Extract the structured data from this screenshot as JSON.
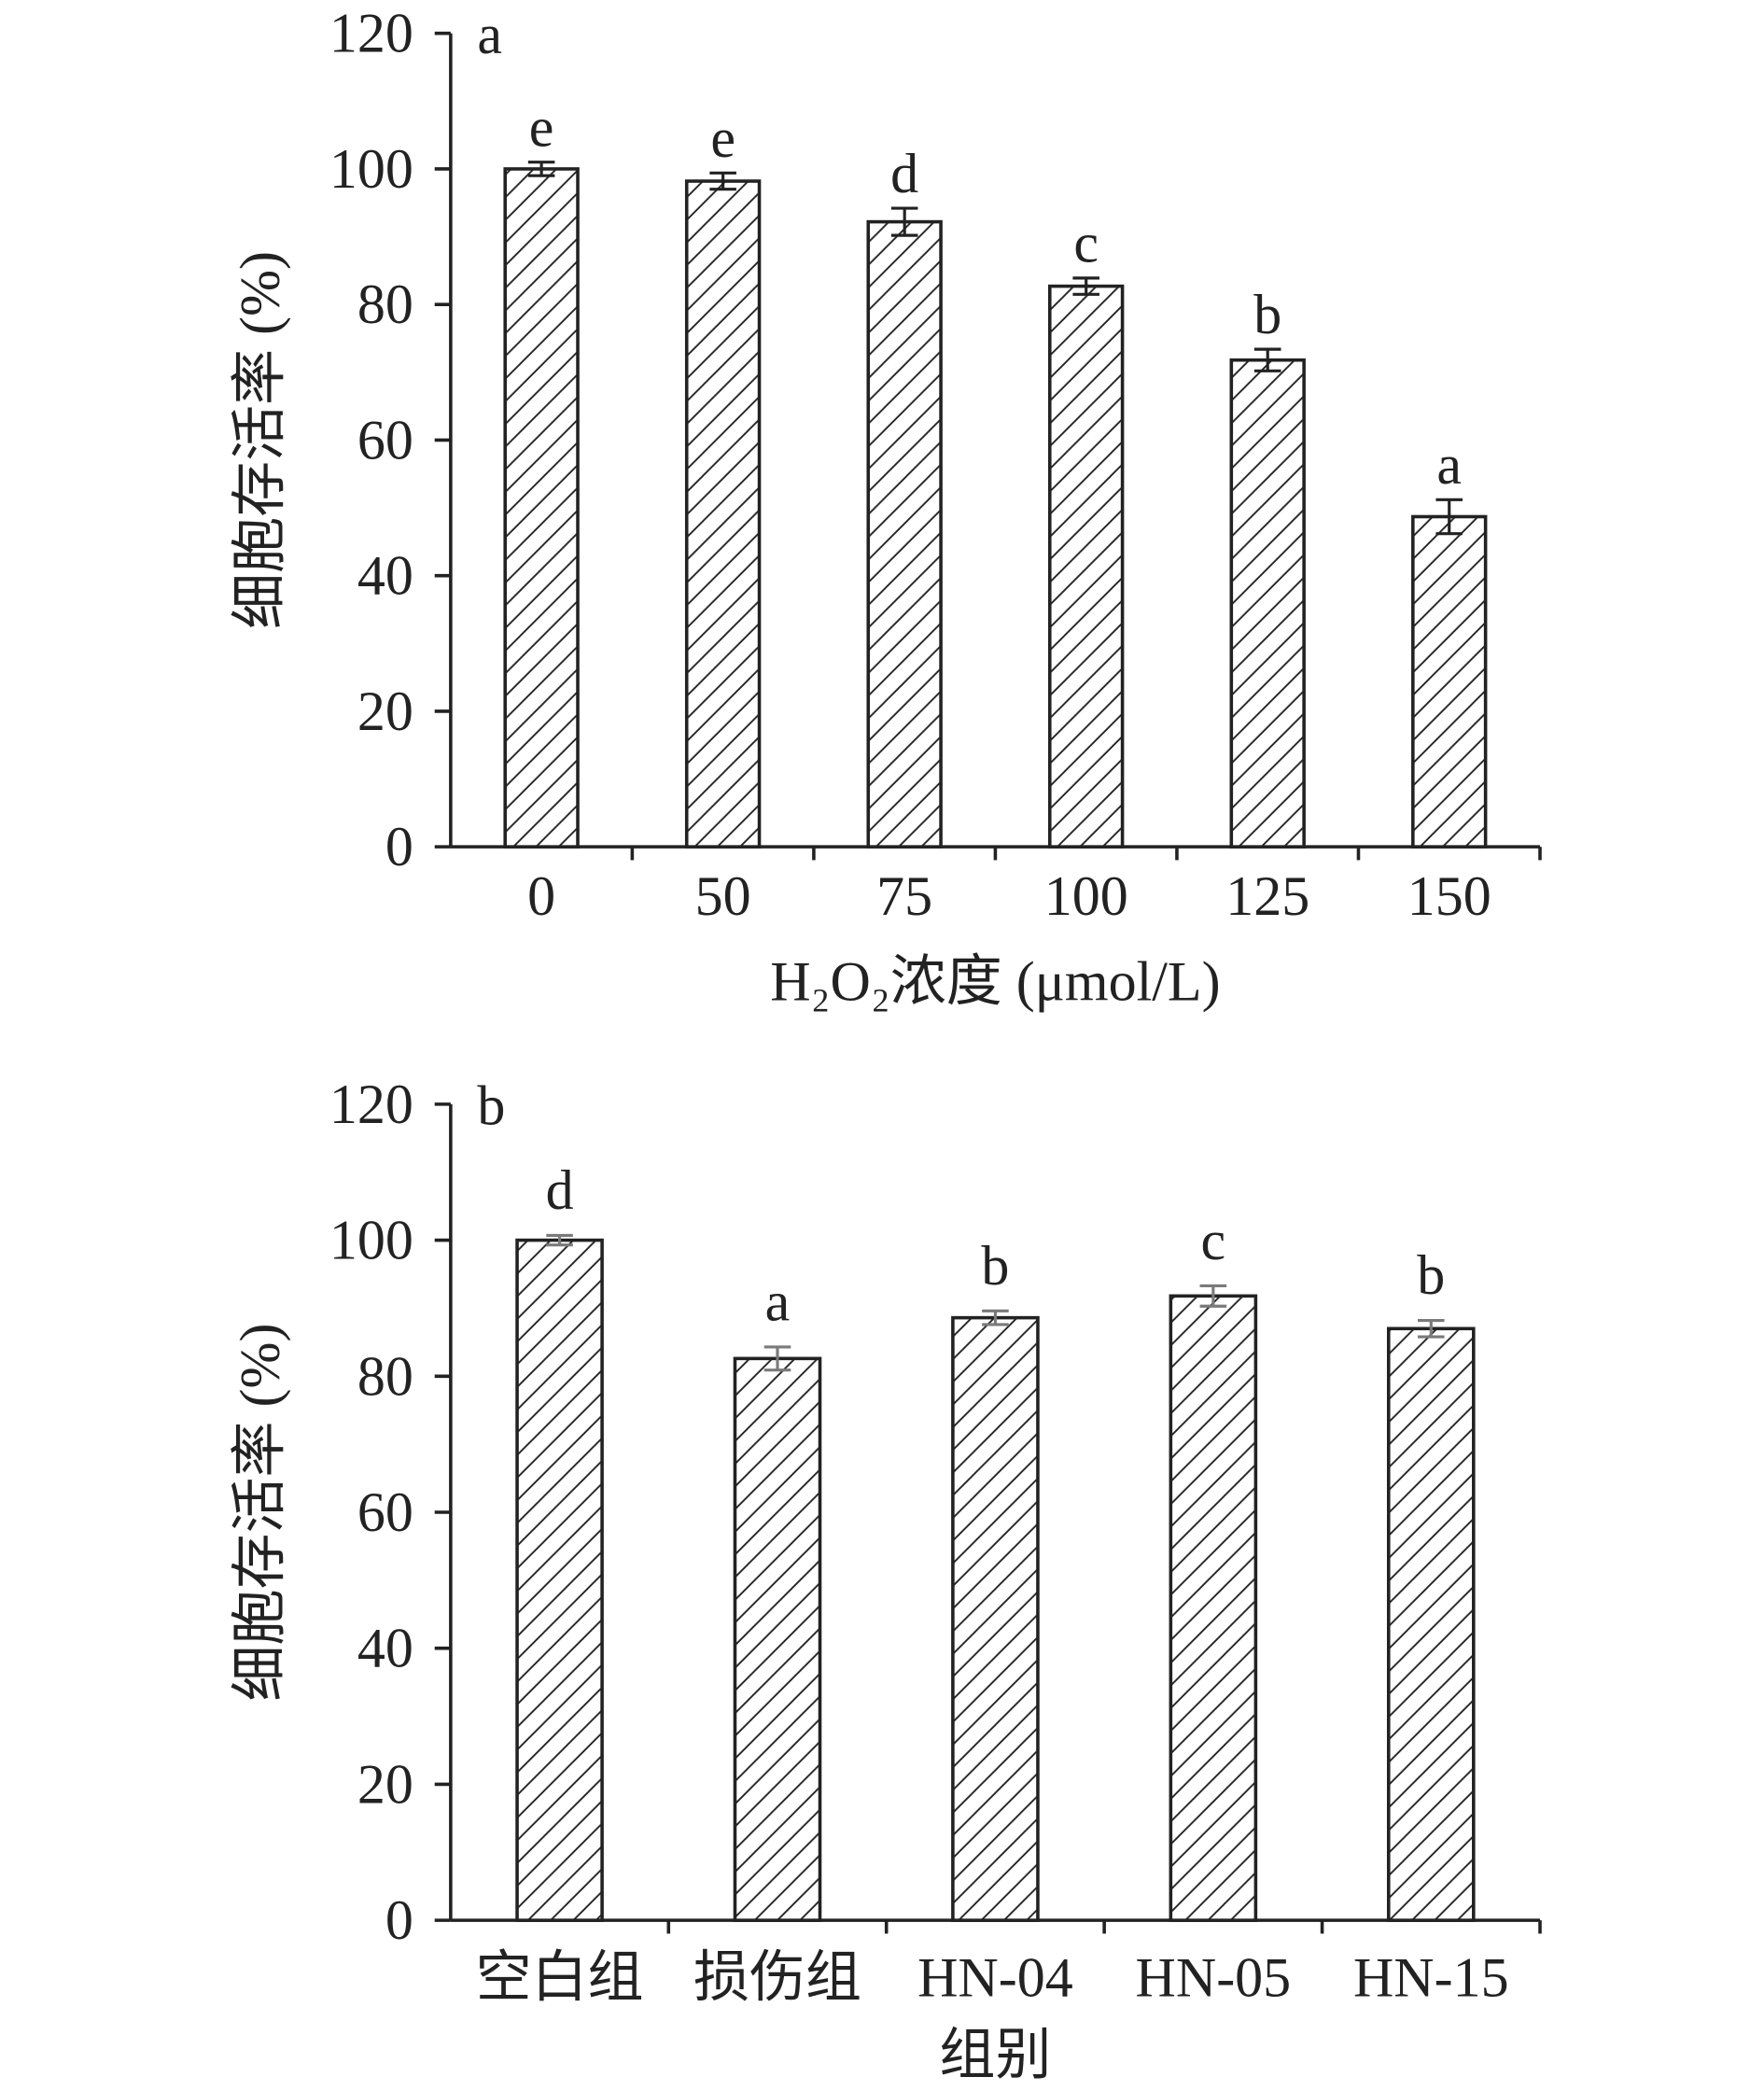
{
  "chart_data": [
    {
      "type": "bar",
      "panel_label": "a",
      "categories": [
        "0",
        "50",
        "75",
        "100",
        "125",
        "150"
      ],
      "values": [
        100,
        98.2,
        92.2,
        82.7,
        71.8,
        48.7
      ],
      "errors": [
        1.0,
        1.2,
        2.0,
        1.2,
        1.6,
        2.5
      ],
      "significance_letters": [
        "e",
        "e",
        "d",
        "c",
        "b",
        "a"
      ],
      "xlabel": "H₂O₂浓度 (μmol/L)",
      "ylabel": "细胞存活率 (%)",
      "ylim": [
        0,
        120
      ],
      "yticks": [
        "0",
        "20",
        "40",
        "60",
        "80",
        "100",
        "120"
      ],
      "grid": false,
      "legend": "none",
      "colors": {
        "bar_fill": "#ffffff",
        "bar_edge": "#222222",
        "hatch": "#222222",
        "error_bar": "#222222",
        "axis": "#222222"
      }
    },
    {
      "type": "bar",
      "panel_label": "b",
      "categories": [
        "空白组",
        "损伤组",
        "HN-04",
        "HN-05",
        "HN-15"
      ],
      "values": [
        100,
        82.6,
        88.6,
        91.8,
        87.0
      ],
      "errors": [
        0.7,
        1.7,
        1.0,
        1.5,
        1.2
      ],
      "significance_letters": [
        "d",
        "a",
        "b",
        "c",
        "b"
      ],
      "xlabel": "组别",
      "ylabel": "细胞存活率 (%)",
      "ylim": [
        0,
        120
      ],
      "yticks": [
        "0",
        "20",
        "40",
        "60",
        "80",
        "100",
        "120"
      ],
      "grid": false,
      "legend": "none",
      "colors": {
        "bar_fill": "#ffffff",
        "bar_edge": "#222222",
        "hatch": "#222222",
        "error_bar": "#7a7a7a",
        "axis": "#222222"
      }
    }
  ]
}
